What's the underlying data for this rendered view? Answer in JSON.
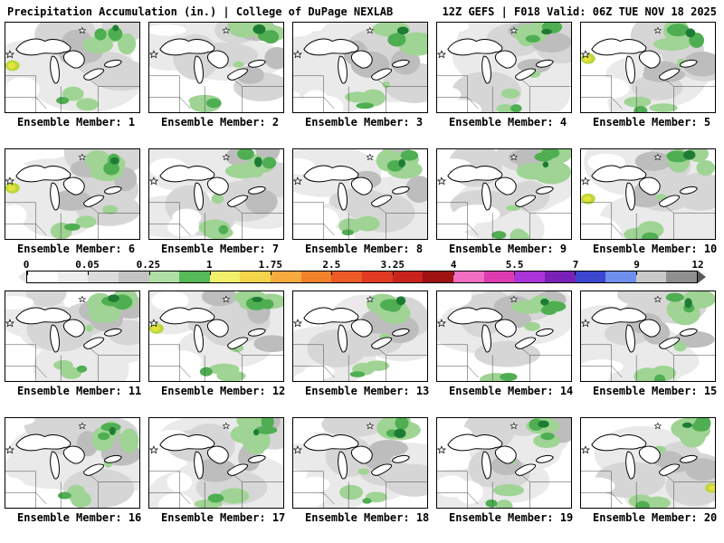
{
  "header": {
    "title_left": "Precipitation Accumulation (in.) | College of DuPage NEXLAB",
    "title_right": "12Z GEFS | F018 Valid: 06Z TUE NOV 18 2025"
  },
  "colorbar": {
    "ticks": [
      "0",
      "0.05",
      "0.25",
      "1",
      "1.75",
      "2.5",
      "3.25",
      "4",
      "5.5",
      "7",
      "9",
      "12"
    ],
    "colors": [
      "#fdfdfd",
      "#ededed",
      "#dbdbdb",
      "#c3c3c3",
      "#b0dfa6",
      "#57b957",
      "#f2ef6a",
      "#f4d44b",
      "#f6ab3e",
      "#f2812c",
      "#ec5a26",
      "#e03a22",
      "#c9231c",
      "#9e1212",
      "#f06ec0",
      "#dd3bb0",
      "#ab35d9",
      "#7a22b8",
      "#3c46cf",
      "#6e8fec",
      "#c9c9c9",
      "#8f8f8f"
    ],
    "left_cap_color": "#e4e4e4",
    "right_cap_color": "#5a5a5a"
  },
  "map_colors": {
    "gray_light": "#eaeaea",
    "gray_mid": "#d6d6d6",
    "gray_dark": "#bdbdbd",
    "green_light": "#9fd494",
    "green_mid": "#4fae52",
    "green_dark": "#1d7c34",
    "yellow": "#e6e23c",
    "yellow_green": "#b9d83e",
    "lake_fill": "#ffffff",
    "outline": "#000000"
  },
  "panels": {
    "label_prefix": "Ensemble Member:",
    "members": [
      {
        "number": 1,
        "label": "Ensemble Member: 1",
        "yellow_spot": "left"
      },
      {
        "number": 2,
        "label": "Ensemble Member: 2",
        "yellow_spot": null
      },
      {
        "number": 3,
        "label": "Ensemble Member: 3",
        "yellow_spot": null
      },
      {
        "number": 4,
        "label": "Ensemble Member: 4",
        "yellow_spot": null
      },
      {
        "number": 5,
        "label": "Ensemble Member: 5",
        "yellow_spot": "left"
      },
      {
        "number": 6,
        "label": "Ensemble Member: 6",
        "yellow_spot": "left"
      },
      {
        "number": 7,
        "label": "Ensemble Member: 7",
        "yellow_spot": null
      },
      {
        "number": 8,
        "label": "Ensemble Member: 8",
        "yellow_spot": null
      },
      {
        "number": 9,
        "label": "Ensemble Member: 9",
        "yellow_spot": null
      },
      {
        "number": 10,
        "label": "Ensemble Member: 10",
        "yellow_spot": "left"
      },
      {
        "number": 11,
        "label": "Ensemble Member: 11",
        "yellow_spot": null
      },
      {
        "number": 12,
        "label": "Ensemble Member: 12",
        "yellow_spot": "left"
      },
      {
        "number": 13,
        "label": "Ensemble Member: 13",
        "yellow_spot": null
      },
      {
        "number": 14,
        "label": "Ensemble Member: 14",
        "yellow_spot": null
      },
      {
        "number": 15,
        "label": "Ensemble Member: 15",
        "yellow_spot": null
      },
      {
        "number": 16,
        "label": "Ensemble Member: 16",
        "yellow_spot": null
      },
      {
        "number": 17,
        "label": "Ensemble Member: 17",
        "yellow_spot": null
      },
      {
        "number": 18,
        "label": "Ensemble Member: 18",
        "yellow_spot": null
      },
      {
        "number": 19,
        "label": "Ensemble Member: 19",
        "yellow_spot": null
      },
      {
        "number": 20,
        "label": "Ensemble Member: 20",
        "yellow_spot": "right"
      }
    ]
  }
}
